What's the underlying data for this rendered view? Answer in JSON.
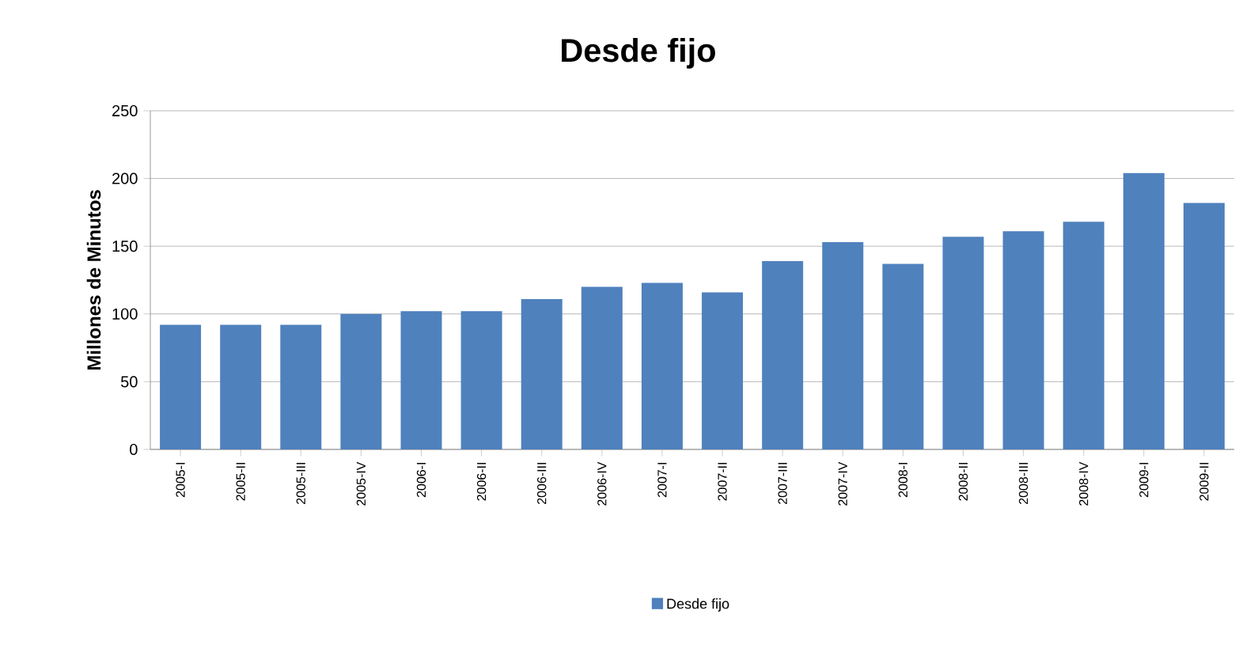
{
  "chart_data": {
    "type": "bar",
    "title": "Desde fijo",
    "ylabel": "Millones de Minutos",
    "categories": [
      "2005-I",
      "2005-II",
      "2005-III",
      "2005-IV",
      "2006-I",
      "2006-II",
      "2006-III",
      "2006-IV",
      "2007-I",
      "2007-II",
      "2007-III",
      "2007-IV",
      "2008-I",
      "2008-II",
      "2008-III",
      "2008-IV",
      "2009-I",
      "2009-II"
    ],
    "series": [
      {
        "name": "Desde fijo",
        "color": "#4f81bd",
        "values": [
          92,
          92,
          92,
          100,
          102,
          102,
          111,
          120,
          123,
          116,
          139,
          153,
          137,
          157,
          161,
          168,
          204,
          182
        ]
      }
    ],
    "ylim": [
      0,
      250
    ],
    "yticks": [
      0,
      50,
      100,
      150,
      200,
      250
    ],
    "grid": "y",
    "legend": "bottom"
  }
}
